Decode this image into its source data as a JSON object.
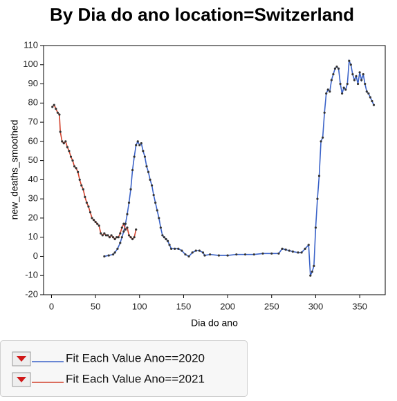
{
  "chart_data": {
    "type": "line",
    "title": "By Dia do ano location=Switzerland",
    "x_label": "Dia do ano",
    "y_label": "new_deaths_smoothed",
    "xlim": [
      -9,
      379
    ],
    "xticks": [
      0,
      50,
      100,
      150,
      200,
      250,
      300,
      350
    ],
    "ylim": [
      -20,
      110
    ],
    "yticks": [
      -20,
      -10,
      0,
      10,
      20,
      30,
      40,
      50,
      60,
      70,
      80,
      90,
      100,
      110
    ],
    "grid": false,
    "series": [
      {
        "name": "Fit Each Value Ano==2020",
        "color": "#3a62c8",
        "x": [
          60,
          65,
          70,
          72,
          75,
          78,
          80,
          82,
          84,
          86,
          88,
          90,
          92,
          94,
          96,
          98,
          100,
          102,
          104,
          106,
          108,
          110,
          112,
          114,
          116,
          118,
          120,
          122,
          124,
          126,
          128,
          130,
          132,
          134,
          136,
          140,
          144,
          148,
          152,
          156,
          160,
          164,
          168,
          172,
          174,
          180,
          190,
          200,
          210,
          220,
          230,
          240,
          250,
          258,
          262,
          266,
          270,
          274,
          280,
          284,
          288,
          292,
          294,
          296,
          298,
          300,
          302,
          304,
          306,
          308,
          310,
          312,
          314,
          316,
          318,
          320,
          322,
          324,
          326,
          328,
          330,
          332,
          334,
          336,
          338,
          340,
          342,
          344,
          346,
          348,
          350,
          352,
          354,
          356,
          358,
          360,
          362,
          364,
          366
        ],
        "values": [
          0,
          0.5,
          1,
          2,
          4,
          7,
          10,
          13,
          17,
          22,
          28,
          35,
          45,
          52,
          58,
          60,
          58,
          59,
          55,
          52,
          47,
          44,
          40,
          37,
          32,
          28,
          24,
          20,
          15,
          11,
          10,
          9,
          8,
          6,
          4,
          4,
          4,
          3,
          1,
          0,
          2,
          3,
          3,
          2,
          0.5,
          1,
          0.5,
          0.5,
          1,
          1,
          1,
          1.5,
          1.5,
          1.5,
          4,
          3.5,
          3,
          2.5,
          2,
          2,
          4,
          6,
          -10,
          -8,
          -5,
          15,
          30,
          42,
          60,
          62,
          75,
          85,
          87,
          86,
          92,
          95,
          98,
          99,
          98,
          90,
          85,
          88,
          87,
          90,
          102,
          100,
          95,
          92,
          94,
          90,
          96,
          92,
          95,
          90,
          86,
          85,
          83,
          81,
          79
        ]
      },
      {
        "name": "Fit Each Value Ano==2021",
        "color": "#d2412c",
        "x": [
          1,
          3,
          5,
          7,
          9,
          10,
          12,
          14,
          16,
          18,
          20,
          22,
          24,
          26,
          28,
          30,
          32,
          34,
          36,
          38,
          40,
          42,
          44,
          46,
          48,
          50,
          52,
          54,
          56,
          58,
          60,
          62,
          64,
          66,
          68,
          70,
          72,
          74,
          76,
          78,
          80,
          82,
          84,
          86,
          88,
          90,
          92,
          94,
          96
        ],
        "values": [
          78,
          79,
          77,
          75,
          74,
          65,
          60,
          59,
          60,
          57,
          55,
          52,
          50,
          47,
          46,
          44,
          40,
          37,
          35,
          31,
          28,
          26,
          23,
          20,
          19,
          18,
          17,
          16,
          12,
          11,
          12,
          11,
          11,
          10,
          11,
          10,
          9,
          10,
          10,
          12,
          15,
          17,
          14,
          15,
          11,
          10,
          9,
          10,
          14
        ]
      }
    ]
  }
}
